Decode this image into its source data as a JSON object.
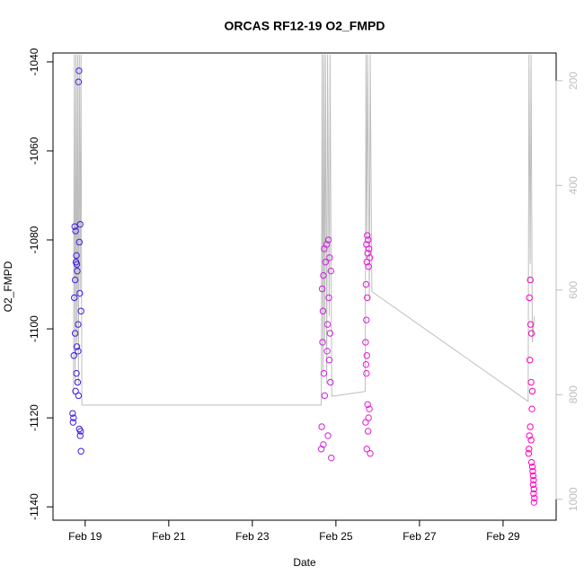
{
  "chart_data": {
    "type": "scatter",
    "title": "ORCAS RF12-19 O2_FMPD",
    "x_label": "Date",
    "y_label": "O2_FMPD",
    "xlim": [
      18.23,
      30.27
    ],
    "xticks": [
      {
        "value": 19,
        "label": "Feb 19"
      },
      {
        "value": 21,
        "label": "Feb 21"
      },
      {
        "value": 23,
        "label": "Feb 23"
      },
      {
        "value": 25,
        "label": "Feb 25"
      },
      {
        "value": 27,
        "label": "Feb 27"
      },
      {
        "value": 29,
        "label": "Feb 29"
      }
    ],
    "ylim": [
      -1143,
      -1038
    ],
    "yticks": [
      -1040,
      -1060,
      -1080,
      -1100,
      -1120,
      -1140
    ],
    "y2lim": [
      1040,
      147
    ],
    "y2ticks": [
      200,
      400,
      600,
      800,
      1000
    ],
    "y2_color": "#bebebe",
    "series": [
      {
        "color": "#6a5acd",
        "axis": "y2",
        "style": "line",
        "x": [
          18.72,
          18.74,
          18.76,
          18.78,
          18.8,
          18.82,
          18.84,
          18.86,
          18.88,
          18.9,
          18.92,
          24.65,
          24.67,
          24.69,
          24.71,
          24.73,
          24.75,
          24.78,
          24.8,
          24.84,
          24.86,
          24.9,
          25.7,
          25.72,
          25.74,
          25.76,
          25.8,
          25.82,
          25.86,
          29.6,
          29.62,
          29.65,
          29.67,
          29.7,
          29.75
        ],
        "values": [
          800,
          150,
          780,
          150,
          700,
          150,
          780,
          150,
          600,
          150,
          820,
          820,
          150,
          760,
          150,
          700,
          150,
          780,
          150,
          650,
          150,
          803,
          794,
          150,
          500,
          150,
          620,
          150,
          603,
          813,
          150,
          550,
          150,
          700,
          650
        ]
      },
      {
        "color": "#3a1ee6",
        "x": [
          18.85,
          18.84,
          18.75,
          18.77,
          18.88,
          18.86,
          18.79,
          18.78,
          18.81,
          18.87,
          18.74,
          18.9,
          18.83,
          18.76,
          18.8,
          18.73,
          18.79,
          18.82,
          18.77,
          18.84,
          18.7,
          18.72,
          18.71,
          18.86,
          18.89,
          18.88,
          18.9,
          18.8,
          18.76,
          18.83
        ],
        "values": [
          -1042,
          -1044.5,
          -1077,
          -1078,
          -1076.5,
          -1080.5,
          -1083.5,
          -1085,
          -1087,
          -1092,
          -1093,
          -1096,
          -1099,
          -1101,
          -1104,
          -1106,
          -1110,
          -1112,
          -1114,
          -1115,
          -1119,
          -1120,
          -1121,
          -1122.5,
          -1123,
          -1124,
          -1127.5,
          -1085.5,
          -1089,
          -1105
        ]
      },
      {
        "color": "#cc22dd",
        "x": [
          24.82,
          24.78,
          24.72,
          24.85,
          24.75,
          24.88,
          24.7,
          24.67,
          24.83,
          24.69,
          24.8,
          24.86,
          24.68,
          24.79,
          24.84,
          24.71,
          24.87,
          24.73,
          24.66,
          24.81,
          24.7,
          24.65,
          24.89
        ],
        "values": [
          -1080,
          -1081,
          -1082,
          -1084,
          -1085,
          -1087,
          -1088,
          -1091,
          -1093,
          -1096,
          -1099,
          -1101,
          -1103,
          -1105,
          -1107,
          -1110,
          -1112,
          -1115,
          -1122,
          -1124,
          -1126,
          -1127,
          -1129
        ]
      },
      {
        "color": "#e31bd4",
        "x": [
          25.75,
          25.77,
          25.73,
          25.79,
          25.76,
          25.81,
          25.74,
          25.78,
          25.72,
          25.75,
          25.73,
          25.71,
          25.74,
          25.72,
          25.73,
          25.76,
          25.8,
          25.78,
          25.71,
          25.77,
          25.74,
          25.82
        ],
        "values": [
          -1079,
          -1080,
          -1081,
          -1082,
          -1083,
          -1084,
          -1085,
          -1086,
          -1090,
          -1093,
          -1098,
          -1103,
          -1106,
          -1108,
          -1110,
          -1117,
          -1118,
          -1120,
          -1121,
          -1123,
          -1127,
          -1128
        ]
      },
      {
        "color": "#ff00c0",
        "x": [
          29.65,
          29.63,
          29.66,
          29.68,
          29.64,
          29.67,
          29.7,
          29.69,
          29.65,
          29.63,
          29.67,
          29.62,
          29.61,
          29.68,
          29.7,
          29.71,
          29.72,
          29.73,
          29.72,
          29.74,
          29.73,
          29.75,
          29.74
        ],
        "values": [
          -1089,
          -1093,
          -1099,
          -1101,
          -1107,
          -1112,
          -1114,
          -1118,
          -1122,
          -1124,
          -1125,
          -1127,
          -1128,
          -1130,
          -1131,
          -1132,
          -1133,
          -1134,
          -1135,
          -1136,
          -1137,
          -1138,
          -1139
        ]
      }
    ]
  }
}
